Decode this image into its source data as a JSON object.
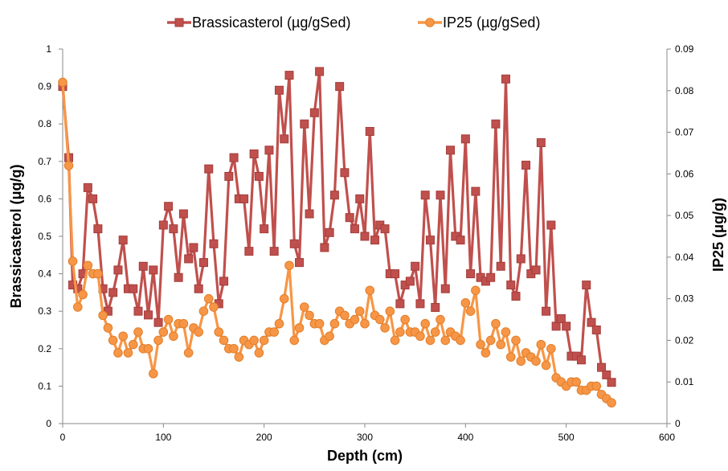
{
  "chart_data": {
    "type": "line",
    "title": "",
    "xlabel": "Depth (cm)",
    "ylabel_left": "Brassicasterol (ug/g)",
    "ylabel_right": "IP25 (ug/g)",
    "xlim": [
      0,
      600
    ],
    "x_ticks": [
      "0",
      "100",
      "200",
      "300",
      "400",
      "500",
      "600"
    ],
    "ylim_left": [
      0,
      1
    ],
    "y_ticks_left": [
      "0",
      "0.1",
      "0.2",
      "0.3",
      "0.4",
      "0.5",
      "0.6",
      "0.7",
      "0.8",
      "0.9",
      "1"
    ],
    "ylim_right": [
      0,
      0.09
    ],
    "y_ticks_right": [
      "0",
      "0.01",
      "0.02",
      "0.03",
      "0.04",
      "0.05",
      "0.06",
      "0.07",
      "0.08",
      "0.09"
    ],
    "grid": false,
    "legend_position": "top",
    "series": [
      {
        "name": "Brassicasterol (µg/gSed)",
        "axis": "left",
        "color": "#c0504d",
        "marker": "square",
        "x": [
          0,
          6,
          10,
          15,
          20,
          25,
          30,
          35,
          40,
          45,
          50,
          55,
          60,
          65,
          70,
          75,
          80,
          85,
          90,
          95,
          100,
          105,
          110,
          115,
          120,
          125,
          130,
          135,
          140,
          145,
          150,
          155,
          160,
          165,
          170,
          175,
          180,
          185,
          190,
          195,
          200,
          205,
          210,
          215,
          220,
          225,
          230,
          235,
          240,
          245,
          250,
          255,
          260,
          265,
          270,
          275,
          280,
          285,
          290,
          295,
          300,
          305,
          310,
          315,
          320,
          325,
          330,
          335,
          340,
          345,
          350,
          355,
          360,
          365,
          370,
          375,
          380,
          385,
          390,
          395,
          400,
          405,
          410,
          415,
          420,
          425,
          430,
          435,
          440,
          445,
          450,
          455,
          460,
          465,
          470,
          475,
          480,
          485,
          490,
          495,
          500,
          505,
          510,
          515,
          520,
          525,
          530,
          535,
          540,
          545
        ],
        "y": [
          0.9,
          0.71,
          0.37,
          0.36,
          0.4,
          0.63,
          0.6,
          0.52,
          0.36,
          0.3,
          0.35,
          0.41,
          0.49,
          0.36,
          0.36,
          0.3,
          0.42,
          0.29,
          0.41,
          0.27,
          0.53,
          0.58,
          0.52,
          0.39,
          0.56,
          0.44,
          0.47,
          0.36,
          0.43,
          0.68,
          0.48,
          0.32,
          0.38,
          0.66,
          0.71,
          0.6,
          0.6,
          0.46,
          0.72,
          0.66,
          0.52,
          0.73,
          0.46,
          0.89,
          0.76,
          0.93,
          0.48,
          0.43,
          0.8,
          0.56,
          0.83,
          0.94,
          0.47,
          0.51,
          0.61,
          0.9,
          0.67,
          0.55,
          0.52,
          0.6,
          0.5,
          0.78,
          0.49,
          0.53,
          0.52,
          0.4,
          0.4,
          0.32,
          0.37,
          0.38,
          0.42,
          0.32,
          0.61,
          0.49,
          0.31,
          0.61,
          0.36,
          0.73,
          0.5,
          0.49,
          0.76,
          0.4,
          0.62,
          0.39,
          0.38,
          0.39,
          0.8,
          0.42,
          0.92,
          0.37,
          0.34,
          0.44,
          0.69,
          0.4,
          0.41,
          0.75,
          0.3,
          0.53,
          0.26,
          0.28,
          0.26,
          0.18,
          0.18,
          0.17,
          0.37,
          0.27,
          0.25,
          0.15,
          0.13,
          0.11
        ]
      },
      {
        "name": "IP25 (µg/gSed)",
        "axis": "right",
        "color": "#f79646",
        "marker": "circle",
        "x": [
          0,
          6,
          10,
          15,
          20,
          25,
          30,
          35,
          40,
          45,
          50,
          55,
          60,
          65,
          70,
          75,
          80,
          85,
          90,
          95,
          100,
          105,
          110,
          115,
          120,
          125,
          130,
          135,
          140,
          145,
          150,
          155,
          160,
          165,
          170,
          175,
          180,
          185,
          190,
          195,
          200,
          205,
          210,
          215,
          220,
          225,
          230,
          235,
          240,
          245,
          250,
          255,
          260,
          265,
          270,
          275,
          280,
          285,
          290,
          295,
          300,
          305,
          310,
          315,
          320,
          325,
          330,
          335,
          340,
          345,
          350,
          355,
          360,
          365,
          370,
          375,
          380,
          385,
          390,
          395,
          400,
          405,
          410,
          415,
          420,
          425,
          430,
          435,
          440,
          445,
          450,
          455,
          460,
          465,
          470,
          475,
          480,
          485,
          490,
          495,
          500,
          505,
          510,
          515,
          520,
          525,
          530,
          535,
          540,
          545
        ],
        "y": [
          0.082,
          0.062,
          0.039,
          0.028,
          0.031,
          0.038,
          0.036,
          0.036,
          0.026,
          0.023,
          0.02,
          0.017,
          0.021,
          0.017,
          0.019,
          0.022,
          0.018,
          0.018,
          0.012,
          0.02,
          0.022,
          0.025,
          0.021,
          0.024,
          0.024,
          0.017,
          0.023,
          0.022,
          0.027,
          0.03,
          0.028,
          0.022,
          0.02,
          0.018,
          0.018,
          0.016,
          0.02,
          0.019,
          0.02,
          0.017,
          0.02,
          0.022,
          0.022,
          0.024,
          0.03,
          0.038,
          0.02,
          0.023,
          0.028,
          0.026,
          0.024,
          0.024,
          0.02,
          0.021,
          0.024,
          0.027,
          0.026,
          0.024,
          0.025,
          0.027,
          0.024,
          0.032,
          0.026,
          0.025,
          0.023,
          0.027,
          0.02,
          0.022,
          0.025,
          0.022,
          0.022,
          0.021,
          0.024,
          0.02,
          0.022,
          0.025,
          0.02,
          0.022,
          0.021,
          0.02,
          0.029,
          0.027,
          0.032,
          0.019,
          0.017,
          0.02,
          0.024,
          0.019,
          0.022,
          0.016,
          0.02,
          0.015,
          0.017,
          0.016,
          0.015,
          0.019,
          0.014,
          0.018,
          0.011,
          0.01,
          0.009,
          0.01,
          0.01,
          0.008,
          0.008,
          0.009,
          0.009,
          0.007,
          0.006,
          0.005
        ]
      }
    ]
  }
}
